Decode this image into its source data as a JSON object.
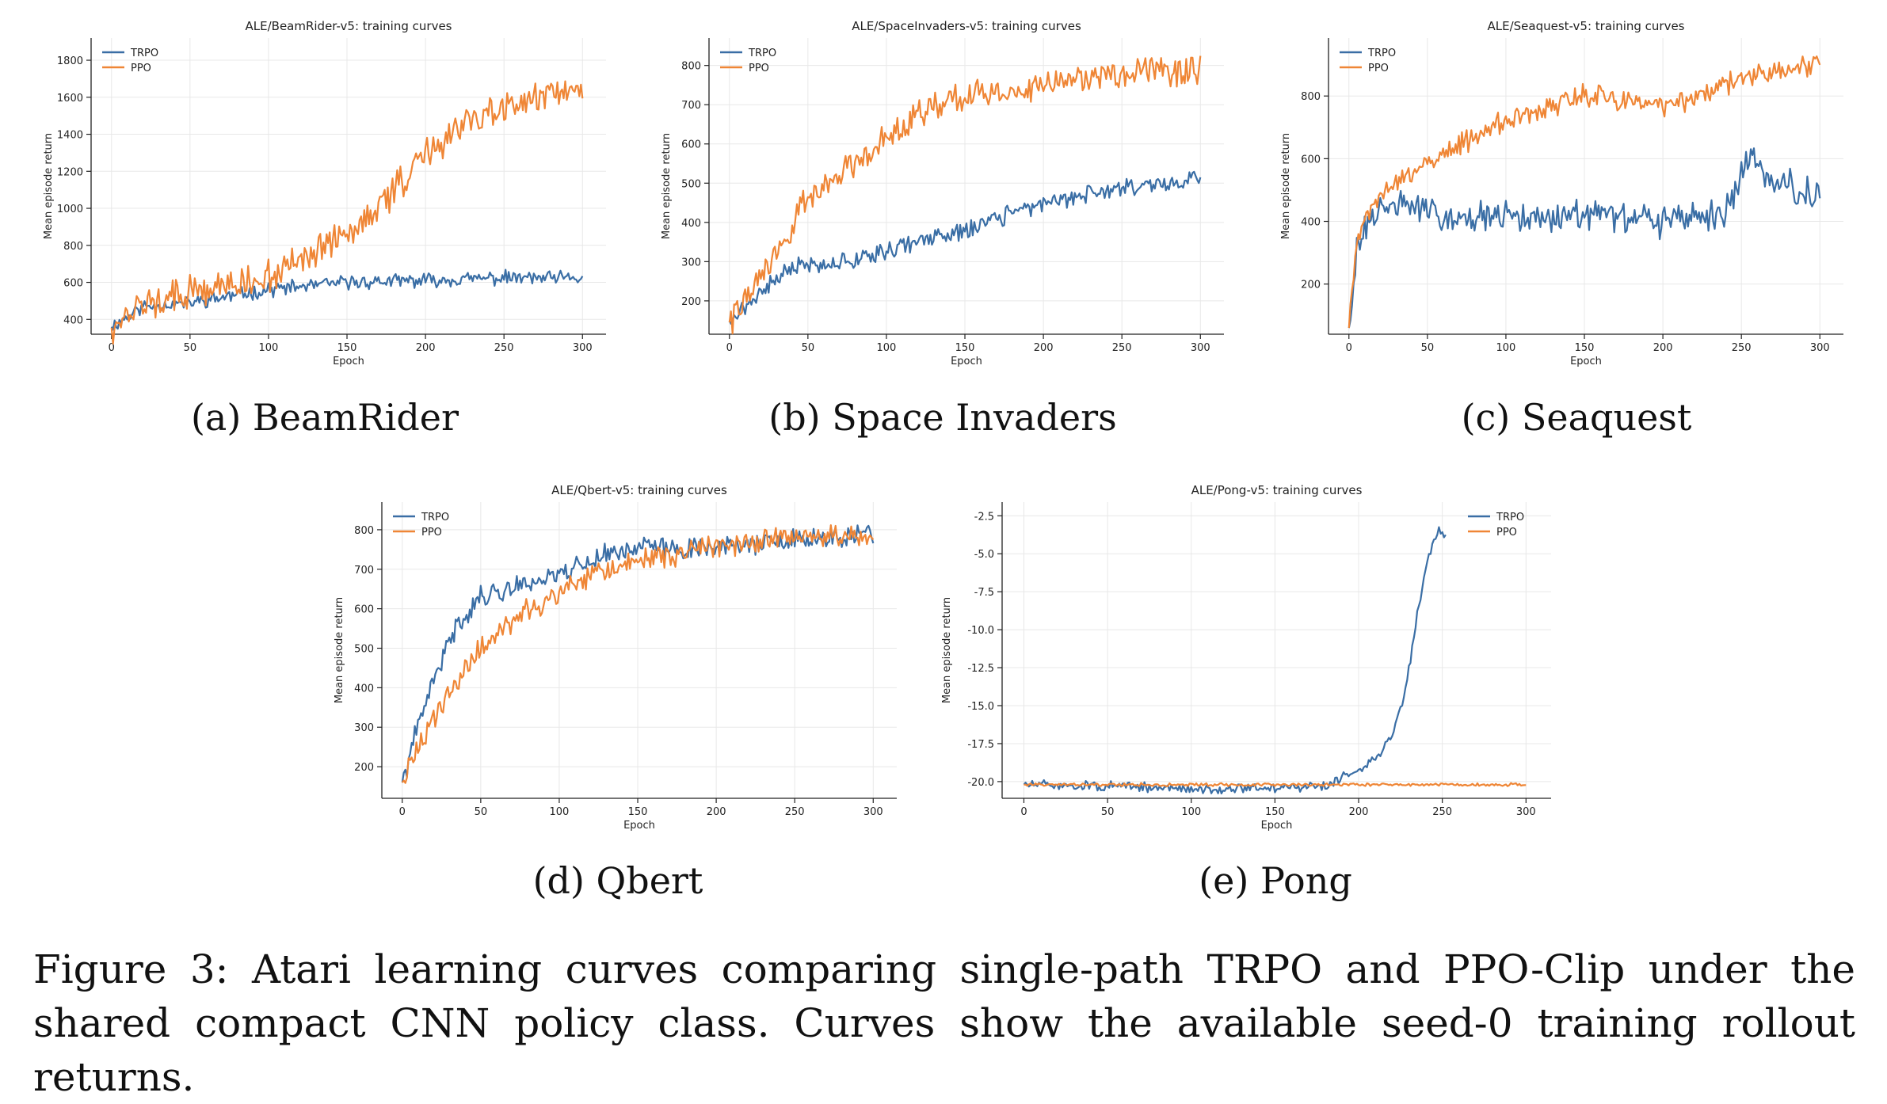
{
  "figure_caption": "Figure 3:  Atari learning curves comparing single-path TRPO and PPO-Clip under the shared compact CNN policy class. Curves show the available seed-0 training rollout returns.",
  "colors": {
    "TRPO": "#3a6ea5",
    "PPO": "#ef8636"
  },
  "chart_data": [
    {
      "type": "line",
      "panel_caption": "(a) BeamRider",
      "title": "ALE/BeamRider-v5: training curves",
      "xlabel": "Epoch",
      "ylabel": "Mean episode return",
      "xlim": [
        -13,
        315
      ],
      "ylim": [
        320,
        1920
      ],
      "xticks": [
        0,
        50,
        100,
        150,
        200,
        250,
        300
      ],
      "yticks": [
        400,
        600,
        800,
        1000,
        1200,
        1400,
        1600,
        1800
      ],
      "grid": true,
      "legend": "top-left",
      "series": [
        {
          "name": "TRPO",
          "knots": [
            [
              0,
              360
            ],
            [
              20,
              470
            ],
            [
              50,
              490
            ],
            [
              100,
              560
            ],
            [
              150,
              600
            ],
            [
              200,
              610
            ],
            [
              250,
              625
            ],
            [
              300,
              620
            ]
          ],
          "noise": 30,
          "seed": 11
        },
        {
          "name": "PPO",
          "knots": [
            [
              0,
              355
            ],
            [
              20,
              480
            ],
            [
              50,
              540
            ],
            [
              100,
              630
            ],
            [
              130,
              760
            ],
            [
              160,
              920
            ],
            [
              180,
              1100
            ],
            [
              200,
              1300
            ],
            [
              220,
              1420
            ],
            [
              250,
              1550
            ],
            [
              270,
              1620
            ],
            [
              300,
              1640
            ]
          ],
          "noise": 70,
          "seed": 12
        }
      ]
    },
    {
      "type": "line",
      "panel_caption": "(b) Space Invaders",
      "title": "ALE/SpaceInvaders-v5: training curves",
      "xlabel": "Epoch",
      "ylabel": "Mean episode return",
      "xlim": [
        -13,
        315
      ],
      "ylim": [
        115,
        870
      ],
      "xticks": [
        0,
        50,
        100,
        150,
        200,
        250,
        300
      ],
      "yticks": [
        200,
        300,
        400,
        500,
        600,
        700,
        800
      ],
      "grid": true,
      "legend": "top-left",
      "series": [
        {
          "name": "TRPO",
          "knots": [
            [
              0,
              150
            ],
            [
              20,
              220
            ],
            [
              40,
              290
            ],
            [
              75,
              300
            ],
            [
              100,
              330
            ],
            [
              150,
              380
            ],
            [
              200,
              450
            ],
            [
              250,
              490
            ],
            [
              300,
              510
            ]
          ],
          "noise": 18,
          "seed": 21
        },
        {
          "name": "PPO",
          "knots": [
            [
              0,
              145
            ],
            [
              25,
              290
            ],
            [
              50,
              460
            ],
            [
              75,
              540
            ],
            [
              100,
              620
            ],
            [
              120,
              680
            ],
            [
              150,
              720
            ],
            [
              200,
              750
            ],
            [
              250,
              780
            ],
            [
              300,
              790
            ]
          ],
          "noise": 30,
          "seed": 22
        }
      ]
    },
    {
      "type": "line",
      "panel_caption": "(c) Seaquest",
      "title": "ALE/Seaquest-v5: training curves",
      "xlabel": "Epoch",
      "ylabel": "Mean episode return",
      "xlim": [
        -13,
        315
      ],
      "ylim": [
        40,
        985
      ],
      "xticks": [
        0,
        50,
        100,
        150,
        200,
        250,
        300
      ],
      "yticks": [
        200,
        400,
        600,
        800
      ],
      "grid": true,
      "legend": "top-left",
      "series": [
        {
          "name": "TRPO",
          "knots": [
            [
              0,
              60
            ],
            [
              5,
              300
            ],
            [
              15,
              420
            ],
            [
              30,
              460
            ],
            [
              60,
              420
            ],
            [
              100,
              410
            ],
            [
              150,
              420
            ],
            [
              200,
              400
            ],
            [
              240,
              430
            ],
            [
              255,
              600
            ],
            [
              270,
              540
            ],
            [
              300,
              470
            ]
          ],
          "noise": 40,
          "seed": 31
        },
        {
          "name": "PPO",
          "knots": [
            [
              0,
              60
            ],
            [
              5,
              330
            ],
            [
              15,
              460
            ],
            [
              30,
              520
            ],
            [
              60,
              620
            ],
            [
              100,
              720
            ],
            [
              150,
              800
            ],
            [
              200,
              770
            ],
            [
              220,
              790
            ],
            [
              250,
              860
            ],
            [
              300,
              900
            ]
          ],
          "noise": 28,
          "seed": 32
        }
      ]
    },
    {
      "type": "line",
      "panel_caption": "(d) Qbert",
      "title": "ALE/Qbert-v5: training curves",
      "xlabel": "Epoch",
      "ylabel": "Mean episode return",
      "xlim": [
        -13,
        315
      ],
      "ylim": [
        120,
        870
      ],
      "xticks": [
        0,
        50,
        100,
        150,
        200,
        250,
        300
      ],
      "yticks": [
        200,
        300,
        400,
        500,
        600,
        700,
        800
      ],
      "grid": true,
      "legend": "top-left",
      "series": [
        {
          "name": "TRPO",
          "knots": [
            [
              0,
              160
            ],
            [
              10,
              300
            ],
            [
              20,
              420
            ],
            [
              35,
              560
            ],
            [
              50,
              630
            ],
            [
              75,
              660
            ],
            [
              100,
              690
            ],
            [
              125,
              730
            ],
            [
              150,
              760
            ],
            [
              175,
              750
            ],
            [
              200,
              760
            ],
            [
              250,
              770
            ],
            [
              300,
              790
            ]
          ],
          "noise": 22,
          "seed": 41
        },
        {
          "name": "PPO",
          "knots": [
            [
              0,
              160
            ],
            [
              10,
              240
            ],
            [
              25,
              360
            ],
            [
              50,
              500
            ],
            [
              75,
              580
            ],
            [
              100,
              640
            ],
            [
              125,
              690
            ],
            [
              150,
              720
            ],
            [
              200,
              760
            ],
            [
              250,
              780
            ],
            [
              300,
              780
            ]
          ],
          "noise": 24,
          "seed": 42
        }
      ]
    },
    {
      "type": "line",
      "panel_caption": "(e) Pong",
      "title": "ALE/Pong-v5: training curves",
      "xlabel": "Epoch",
      "ylabel": "Mean episode return",
      "xlim": [
        -13,
        315
      ],
      "ylim": [
        -21.1,
        -1.6
      ],
      "xticks": [
        0,
        50,
        100,
        150,
        200,
        250,
        300
      ],
      "yticks": [
        -20.0,
        -17.5,
        -15.0,
        -12.5,
        -10.0,
        -7.5,
        -5.0,
        -2.5
      ],
      "grid": true,
      "legend": "top-right",
      "series": [
        {
          "name": "TRPO",
          "knots": [
            [
              0,
              -20.2
            ],
            [
              50,
              -20.3
            ],
            [
              100,
              -20.5
            ],
            [
              150,
              -20.4
            ],
            [
              180,
              -20.3
            ],
            [
              195,
              -19.5
            ],
            [
              210,
              -18.5
            ],
            [
              220,
              -17.0
            ],
            [
              228,
              -14.0
            ],
            [
              235,
              -9.0
            ],
            [
              242,
              -5.0
            ],
            [
              248,
              -3.5
            ],
            [
              252,
              -4.0
            ]
          ],
          "noise": 0.25,
          "seed": 51
        },
        {
          "name": "PPO",
          "knots": [
            [
              0,
              -20.2
            ],
            [
              100,
              -20.2
            ],
            [
              200,
              -20.2
            ],
            [
              300,
              -20.2
            ]
          ],
          "noise": 0.08,
          "seed": 52
        }
      ]
    }
  ]
}
